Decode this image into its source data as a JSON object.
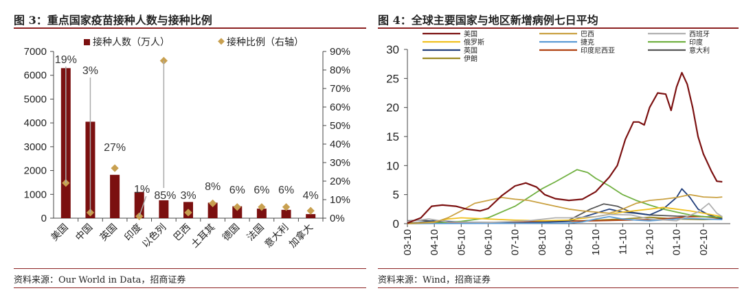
{
  "left": {
    "title": "图 3：重点国家疫苗接种人数与接种比例",
    "source": "资料来源：Our World in Data，招商证券"
  },
  "right": {
    "title": "图 4：全球主要国家与地区新增病例七日平均",
    "source": "资料来源：Wind，招商证券"
  },
  "chart_data": [
    {
      "type": "bar",
      "title": "",
      "categories": [
        "美国",
        "中国",
        "英国",
        "印度",
        "以色列",
        "巴西",
        "土耳其",
        "德国",
        "法国",
        "意大利",
        "加拿大"
      ],
      "series": [
        {
          "name": "接种人数（万人）",
          "type": "bar",
          "axis": "left",
          "color": "#7b1010",
          "values": [
            6300,
            4050,
            1820,
            1100,
            750,
            680,
            650,
            500,
            400,
            350,
            170
          ]
        },
        {
          "name": "接种比例（右轴）",
          "type": "marker",
          "axis": "right",
          "color": "#c8a050",
          "values": [
            19,
            3,
            27,
            1,
            85,
            3,
            8,
            6,
            6,
            6,
            4
          ],
          "labels": [
            "19%",
            "3%",
            "27%",
            "1%",
            "85%",
            "3%",
            "8%",
            "6%",
            "6%",
            "6%",
            "4%"
          ]
        }
      ],
      "ylim": [
        0,
        7000
      ],
      "yticks": [
        0,
        1000,
        2000,
        3000,
        4000,
        5000,
        6000,
        7000
      ],
      "y2lim": [
        0,
        90
      ],
      "y2ticks": [
        "0%",
        "10%",
        "20%",
        "30%",
        "40%",
        "50%",
        "60%",
        "70%",
        "80%",
        "90%"
      ],
      "legend": "top"
    },
    {
      "type": "line",
      "title": "",
      "x": [
        "03-10",
        "04-10",
        "05-10",
        "06-10",
        "07-10",
        "08-10",
        "09-10",
        "10-10",
        "11-10",
        "12-10",
        "01-10",
        "02-10"
      ],
      "ylim": [
        0,
        30
      ],
      "yticks": [
        0,
        5,
        10,
        15,
        20,
        25,
        30
      ],
      "legend": "top",
      "series": [
        {
          "name": "美国",
          "color": "#7b1010",
          "values": [
            [
              0,
              0.1
            ],
            [
              0.5,
              1.0
            ],
            [
              0.9,
              3.0
            ],
            [
              1.3,
              3.2
            ],
            [
              1.8,
              3.0
            ],
            [
              2.2,
              2.5
            ],
            [
              2.7,
              2.2
            ],
            [
              3.0,
              2.6
            ],
            [
              3.5,
              4.8
            ],
            [
              4.0,
              6.5
            ],
            [
              4.4,
              7.0
            ],
            [
              4.8,
              6.3
            ],
            [
              5.1,
              5.0
            ],
            [
              5.5,
              4.3
            ],
            [
              6.0,
              4.0
            ],
            [
              6.5,
              4.2
            ],
            [
              7.0,
              5.5
            ],
            [
              7.5,
              8.0
            ],
            [
              7.8,
              10.0
            ],
            [
              8.1,
              14.5
            ],
            [
              8.4,
              17.5
            ],
            [
              8.6,
              17.5
            ],
            [
              8.8,
              17.0
            ],
            [
              9.0,
              20.0
            ],
            [
              9.3,
              22.5
            ],
            [
              9.6,
              22.3
            ],
            [
              9.8,
              19.5
            ],
            [
              10.0,
              23.5
            ],
            [
              10.2,
              26.0
            ],
            [
              10.4,
              24.0
            ],
            [
              10.6,
              20.0
            ],
            [
              10.8,
              15.0
            ],
            [
              11.0,
              12.0
            ],
            [
              11.3,
              9.0
            ],
            [
              11.5,
              7.3
            ],
            [
              11.7,
              7.2
            ]
          ]
        },
        {
          "name": "巴西",
          "color": "#c9a040",
          "values": [
            [
              0,
              0
            ],
            [
              1.0,
              0.2
            ],
            [
              1.5,
              1.0
            ],
            [
              2.0,
              2.2
            ],
            [
              2.5,
              3.5
            ],
            [
              3.0,
              4.0
            ],
            [
              3.5,
              4.5
            ],
            [
              4.0,
              4.2
            ],
            [
              4.5,
              4.0
            ],
            [
              5.0,
              3.5
            ],
            [
              5.5,
              3.0
            ],
            [
              6.0,
              2.5
            ],
            [
              6.5,
              2.2
            ],
            [
              7.0,
              2.0
            ],
            [
              7.5,
              1.8
            ],
            [
              8.0,
              2.5
            ],
            [
              8.5,
              3.5
            ],
            [
              9.0,
              4.0
            ],
            [
              9.5,
              4.2
            ],
            [
              10.0,
              4.5
            ],
            [
              10.5,
              5.0
            ],
            [
              11.0,
              4.6
            ],
            [
              11.5,
              4.5
            ],
            [
              11.7,
              4.6
            ]
          ]
        },
        {
          "name": "西班牙",
          "color": "#b0b0b0",
          "values": [
            [
              0,
              0.4
            ],
            [
              0.8,
              0.8
            ],
            [
              1.5,
              0.3
            ],
            [
              3.0,
              0.2
            ],
            [
              4.5,
              0.5
            ],
            [
              5.5,
              1.0
            ],
            [
              6.0,
              1.0
            ],
            [
              7.0,
              1.2
            ],
            [
              7.5,
              1.6
            ],
            [
              8.3,
              1.5
            ],
            [
              9.0,
              0.8
            ],
            [
              10.0,
              0.5
            ],
            [
              10.8,
              2.0
            ],
            [
              11.2,
              3.5
            ],
            [
              11.5,
              1.8
            ],
            [
              11.7,
              1.2
            ]
          ]
        },
        {
          "name": "俄罗斯",
          "color": "#f0c020",
          "values": [
            [
              0,
              0
            ],
            [
              1.0,
              0.3
            ],
            [
              1.5,
              0.8
            ],
            [
              2.0,
              1.0
            ],
            [
              3.0,
              0.8
            ],
            [
              4.0,
              0.6
            ],
            [
              5.0,
              0.5
            ],
            [
              6.0,
              0.6
            ],
            [
              7.0,
              1.2
            ],
            [
              8.0,
              2.0
            ],
            [
              9.0,
              2.5
            ],
            [
              9.5,
              2.8
            ],
            [
              10.0,
              2.5
            ],
            [
              10.5,
              2.2
            ],
            [
              11.0,
              1.8
            ],
            [
              11.7,
              1.2
            ]
          ]
        },
        {
          "name": "捷克",
          "color": "#5b9bd5",
          "values": [
            [
              0,
              0
            ],
            [
              6.0,
              0.1
            ],
            [
              6.5,
              0.3
            ],
            [
              7.0,
              0.8
            ],
            [
              7.5,
              1.2
            ],
            [
              8.0,
              0.8
            ],
            [
              8.5,
              0.6
            ],
            [
              9.0,
              0.5
            ],
            [
              10.0,
              0.8
            ],
            [
              10.5,
              0.9
            ],
            [
              11.0,
              0.8
            ],
            [
              11.7,
              0.7
            ]
          ]
        },
        {
          "name": "印度",
          "color": "#70b040",
          "values": [
            [
              0,
              0
            ],
            [
              1.0,
              0.1
            ],
            [
              2.0,
              0.4
            ],
            [
              3.0,
              1.0
            ],
            [
              4.0,
              3.0
            ],
            [
              4.5,
              4.5
            ],
            [
              5.0,
              6.0
            ],
            [
              5.5,
              7.2
            ],
            [
              6.0,
              8.5
            ],
            [
              6.3,
              9.3
            ],
            [
              6.7,
              8.8
            ],
            [
              7.0,
              7.8
            ],
            [
              7.5,
              6.5
            ],
            [
              8.0,
              5.0
            ],
            [
              8.5,
              4.0
            ],
            [
              9.0,
              3.2
            ],
            [
              9.5,
              2.5
            ],
            [
              10.0,
              2.0
            ],
            [
              10.5,
              1.5
            ],
            [
              11.0,
              1.2
            ],
            [
              11.7,
              1.1
            ]
          ]
        },
        {
          "name": "英国",
          "color": "#1f3d7a",
          "values": [
            [
              0,
              0
            ],
            [
              1.0,
              0.5
            ],
            [
              2.0,
              0.3
            ],
            [
              4.0,
              0.1
            ],
            [
              6.0,
              0.4
            ],
            [
              7.0,
              1.8
            ],
            [
              7.5,
              2.5
            ],
            [
              8.0,
              2.0
            ],
            [
              8.5,
              1.8
            ],
            [
              9.0,
              1.5
            ],
            [
              9.5,
              2.5
            ],
            [
              10.0,
              4.5
            ],
            [
              10.2,
              6.0
            ],
            [
              10.5,
              4.5
            ],
            [
              10.8,
              2.5
            ],
            [
              11.2,
              1.5
            ],
            [
              11.7,
              0.8
            ]
          ]
        },
        {
          "name": "印度尼西亚",
          "color": "#b04010",
          "values": [
            [
              0,
              0
            ],
            [
              3.0,
              0.2
            ],
            [
              5.0,
              0.4
            ],
            [
              7.0,
              0.5
            ],
            [
              9.0,
              0.7
            ],
            [
              10.0,
              1.0
            ],
            [
              10.5,
              1.2
            ],
            [
              11.0,
              1.2
            ],
            [
              11.7,
              0.9
            ]
          ]
        },
        {
          "name": "意大利",
          "color": "#555555",
          "values": [
            [
              0,
              0.5
            ],
            [
              0.5,
              0.6
            ],
            [
              1.0,
              0.4
            ],
            [
              2.0,
              0.1
            ],
            [
              5.0,
              0.2
            ],
            [
              6.0,
              0.6
            ],
            [
              6.8,
              2.5
            ],
            [
              7.3,
              3.4
            ],
            [
              7.8,
              3.0
            ],
            [
              8.3,
              2.0
            ],
            [
              9.0,
              1.5
            ],
            [
              10.0,
              1.3
            ],
            [
              11.0,
              1.2
            ],
            [
              11.7,
              1.1
            ]
          ]
        },
        {
          "name": "伊朗",
          "color": "#9b8820",
          "values": [
            [
              0,
              0.1
            ],
            [
              1.0,
              0.3
            ],
            [
              2.0,
              0.2
            ],
            [
              3.0,
              0.2
            ],
            [
              4.0,
              0.2
            ],
            [
              5.0,
              0.3
            ],
            [
              6.0,
              0.4
            ],
            [
              7.0,
              0.6
            ],
            [
              8.0,
              0.8
            ],
            [
              9.0,
              1.1
            ],
            [
              10.0,
              0.8
            ],
            [
              11.0,
              0.7
            ],
            [
              11.7,
              0.8
            ]
          ]
        }
      ]
    }
  ]
}
